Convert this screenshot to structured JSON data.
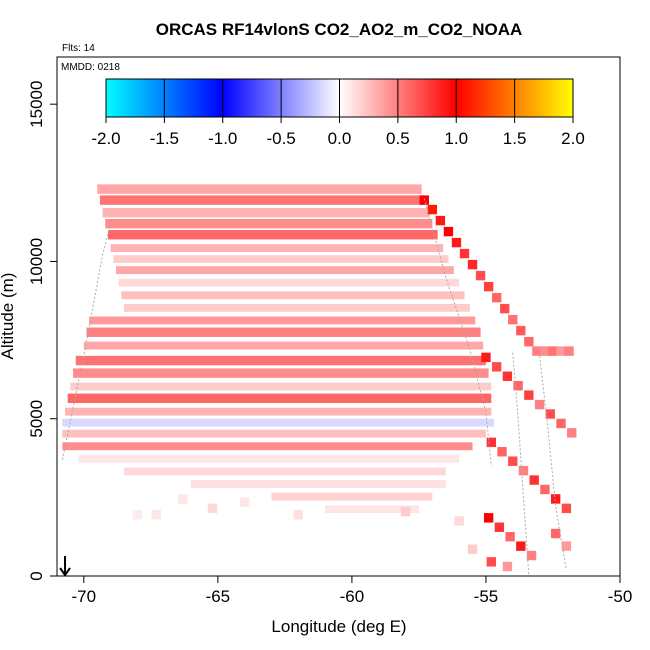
{
  "chart_data": {
    "type": "heatmap",
    "title": "ORCAS RF14vlonS CO2_AO2_m_CO2_NOAA",
    "flights_label": "Flts: 14",
    "date_label": "MMDD: 0218",
    "xlabel": "Longitude (deg E)",
    "ylabel": "Altitude (m)",
    "xlim": [
      -71,
      -50
    ],
    "ylim": [
      0,
      16500
    ],
    "xticks": [
      "-70",
      "-65",
      "-60",
      "-55",
      "-50"
    ],
    "xtick_values": [
      -70,
      -65,
      -60,
      -55,
      -50
    ],
    "yticks": [
      "0",
      "5000",
      "10000",
      "15000"
    ],
    "ytick_values": [
      0,
      5000,
      10000,
      15000
    ],
    "colorbar": {
      "range": [
        -2.0,
        2.0
      ],
      "ticks": [
        "-2.0",
        "-1.5",
        "-1.0",
        "-0.5",
        "0.0",
        "0.5",
        "1.0",
        "1.5",
        "2.0"
      ],
      "tick_values": [
        -2.0,
        -1.5,
        -1.0,
        -0.5,
        0.0,
        0.5,
        1.0,
        1.5,
        2.0
      ],
      "colors": [
        "#00ffff",
        "#0000ff",
        "#ffffff",
        "#ff0000",
        "#ffff00"
      ],
      "color_stops": [
        -2.0,
        -1.0,
        0.0,
        1.0,
        2.0
      ]
    },
    "marker": {
      "label": "start-arrow",
      "x": -70.7,
      "y": 0
    },
    "bands": [
      {
        "y": 12150,
        "h": 300,
        "x0": -69.5,
        "x1": -57.4,
        "value": 0.35
      },
      {
        "y": 11800,
        "h": 300,
        "x0": -69.4,
        "x1": -57.3,
        "value": 0.55
      },
      {
        "y": 11400,
        "h": 300,
        "x0": -69.3,
        "x1": -57.1,
        "value": 0.3
      },
      {
        "y": 11050,
        "h": 300,
        "x0": -69.2,
        "x1": -57.0,
        "value": 0.45
      },
      {
        "y": 10700,
        "h": 300,
        "x0": -69.1,
        "x1": -56.8,
        "value": 0.6
      },
      {
        "y": 10300,
        "h": 250,
        "x0": -69.0,
        "x1": -56.6,
        "value": 0.3
      },
      {
        "y": 9950,
        "h": 250,
        "x0": -68.9,
        "x1": -56.4,
        "value": 0.2
      },
      {
        "y": 9600,
        "h": 250,
        "x0": -68.8,
        "x1": -56.2,
        "value": 0.35
      },
      {
        "y": 9200,
        "h": 250,
        "x0": -68.7,
        "x1": -56.0,
        "value": 0.15
      },
      {
        "y": 8800,
        "h": 250,
        "x0": -68.6,
        "x1": -55.8,
        "value": 0.25
      },
      {
        "y": 8400,
        "h": 250,
        "x0": -68.5,
        "x1": -55.6,
        "value": 0.2
      },
      {
        "y": 8000,
        "h": 250,
        "x0": -69.8,
        "x1": -55.4,
        "value": 0.4
      },
      {
        "y": 7600,
        "h": 300,
        "x0": -69.9,
        "x1": -55.2,
        "value": 0.5
      },
      {
        "y": 7200,
        "h": 250,
        "x0": -70.0,
        "x1": -55.1,
        "value": 0.35
      },
      {
        "y": 6700,
        "h": 300,
        "x0": -70.3,
        "x1": -55.0,
        "value": 0.55
      },
      {
        "y": 6300,
        "h": 300,
        "x0": -70.4,
        "x1": -54.9,
        "value": 0.45
      },
      {
        "y": 5900,
        "h": 250,
        "x0": -70.5,
        "x1": -54.8,
        "value": 0.2
      },
      {
        "y": 5500,
        "h": 300,
        "x0": -70.6,
        "x1": -54.8,
        "value": 0.6
      },
      {
        "y": 5100,
        "h": 250,
        "x0": -70.7,
        "x1": -54.8,
        "value": 0.3
      },
      {
        "y": 4750,
        "h": 250,
        "x0": -70.8,
        "x1": -54.7,
        "value": -0.15
      },
      {
        "y": 4400,
        "h": 250,
        "x0": -70.8,
        "x1": -55.0,
        "value": 0.25
      },
      {
        "y": 4000,
        "h": 250,
        "x0": -70.8,
        "x1": -55.5,
        "value": 0.45
      },
      {
        "y": 3600,
        "h": 250,
        "x0": -70.2,
        "x1": -56.0,
        "value": 0.1
      },
      {
        "y": 3200,
        "h": 250,
        "x0": -68.5,
        "x1": -56.5,
        "value": 0.15
      },
      {
        "y": 2800,
        "h": 250,
        "x0": -66.0,
        "x1": -56.5,
        "value": 0.12
      },
      {
        "y": 2400,
        "h": 250,
        "x0": -63.0,
        "x1": -57.0,
        "value": 0.18
      },
      {
        "y": 2000,
        "h": 250,
        "x0": -61.0,
        "x1": -57.5,
        "value": 0.1
      }
    ],
    "diagonal_cells": [
      {
        "x": -57.3,
        "y": 11800,
        "value": 1.0
      },
      {
        "x": -57.0,
        "y": 11500,
        "value": 1.1
      },
      {
        "x": -56.7,
        "y": 11150,
        "value": 0.9
      },
      {
        "x": -56.4,
        "y": 10800,
        "value": 1.0
      },
      {
        "x": -56.1,
        "y": 10450,
        "value": 0.9
      },
      {
        "x": -55.8,
        "y": 10100,
        "value": 0.8
      },
      {
        "x": -55.5,
        "y": 9750,
        "value": 0.85
      },
      {
        "x": -55.2,
        "y": 9400,
        "value": 0.7
      },
      {
        "x": -54.9,
        "y": 9050,
        "value": 0.75
      },
      {
        "x": -54.6,
        "y": 8700,
        "value": 0.6
      },
      {
        "x": -54.3,
        "y": 8350,
        "value": 0.7
      },
      {
        "x": -54.0,
        "y": 8000,
        "value": 0.55
      },
      {
        "x": -53.7,
        "y": 7650,
        "value": 0.65
      },
      {
        "x": -53.4,
        "y": 7300,
        "value": 0.6
      },
      {
        "x": -53.1,
        "y": 7000,
        "value": 0.5
      },
      {
        "x": -52.8,
        "y": 7000,
        "value": 0.45
      },
      {
        "x": -52.5,
        "y": 7000,
        "value": 0.55
      },
      {
        "x": -52.2,
        "y": 7000,
        "value": 0.4
      },
      {
        "x": -51.9,
        "y": 7000,
        "value": 0.5
      }
    ],
    "east_cells": [
      {
        "x": -55.0,
        "y": 6800,
        "value": 0.9
      },
      {
        "x": -54.6,
        "y": 6500,
        "value": 0.7
      },
      {
        "x": -54.2,
        "y": 6200,
        "value": 0.8
      },
      {
        "x": -53.8,
        "y": 5900,
        "value": 0.6
      },
      {
        "x": -53.4,
        "y": 5600,
        "value": 0.75
      },
      {
        "x": -53.0,
        "y": 5300,
        "value": 0.5
      },
      {
        "x": -52.6,
        "y": 5000,
        "value": 0.7
      },
      {
        "x": -52.2,
        "y": 4700,
        "value": 0.6
      },
      {
        "x": -51.8,
        "y": 4400,
        "value": 0.5
      },
      {
        "x": -54.8,
        "y": 4100,
        "value": 0.8
      },
      {
        "x": -54.4,
        "y": 3800,
        "value": 0.6
      },
      {
        "x": -54.0,
        "y": 3500,
        "value": 0.7
      },
      {
        "x": -53.6,
        "y": 3200,
        "value": 0.5
      },
      {
        "x": -53.2,
        "y": 2900,
        "value": 0.8
      },
      {
        "x": -52.8,
        "y": 2600,
        "value": 0.6
      },
      {
        "x": -52.4,
        "y": 2300,
        "value": 0.9
      },
      {
        "x": -52.0,
        "y": 2000,
        "value": 0.7
      },
      {
        "x": -54.9,
        "y": 1700,
        "value": 1.0
      },
      {
        "x": -54.5,
        "y": 1400,
        "value": 0.8
      },
      {
        "x": -54.1,
        "y": 1100,
        "value": 0.6
      },
      {
        "x": -53.7,
        "y": 800,
        "value": 0.9
      },
      {
        "x": -53.3,
        "y": 500,
        "value": 0.5
      },
      {
        "x": -54.8,
        "y": 300,
        "value": 0.7
      },
      {
        "x": -54.2,
        "y": 150,
        "value": 0.4
      },
      {
        "x": -52.4,
        "y": 1200,
        "value": 0.6
      },
      {
        "x": -52.0,
        "y": 800,
        "value": 0.4
      }
    ],
    "isolated_cells": [
      {
        "x": -66.3,
        "y": 2300,
        "value": 0.1
      },
      {
        "x": -65.2,
        "y": 2000,
        "value": 0.15
      },
      {
        "x": -64.0,
        "y": 2200,
        "value": 0.1
      },
      {
        "x": -62.0,
        "y": 1800,
        "value": 0.12
      },
      {
        "x": -58.0,
        "y": 1900,
        "value": 0.2
      },
      {
        "x": -56.0,
        "y": 1600,
        "value": 0.15
      },
      {
        "x": -55.5,
        "y": 700,
        "value": 0.2
      },
      {
        "x": -67.3,
        "y": 1800,
        "value": 0.1
      },
      {
        "x": -68.0,
        "y": 1800,
        "value": 0.08
      }
    ],
    "tracks": [
      {
        "x": [
          -70.8,
          -70.0,
          -69.3,
          -69.0
        ],
        "y": [
          3700,
          7000,
          10200,
          11200
        ]
      },
      {
        "x": [
          -57.3,
          -56.5,
          -55.6,
          -55.0,
          -54.8
        ],
        "y": [
          12000,
          9500,
          7200,
          5200,
          3500
        ]
      },
      {
        "x": [
          -54.0,
          -53.8,
          -53.6,
          -53.4
        ],
        "y": [
          7100,
          5000,
          2500,
          0
        ]
      },
      {
        "x": [
          -53.0,
          -52.7,
          -52.4,
          -52.0
        ],
        "y": [
          7000,
          4800,
          2200,
          200
        ]
      }
    ]
  }
}
